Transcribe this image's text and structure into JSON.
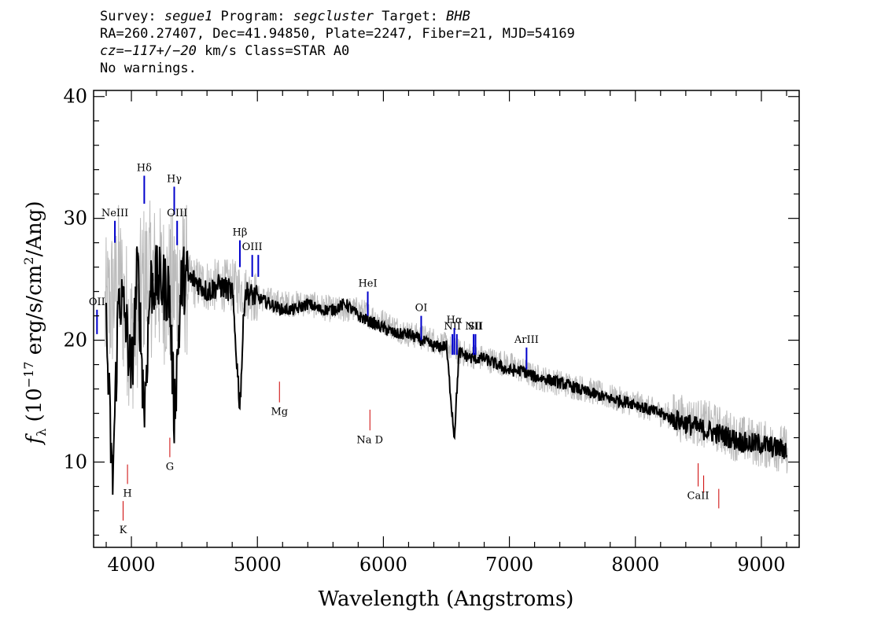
{
  "header": {
    "line1": {
      "survey_label": "Survey: ",
      "survey": "segue1",
      "program_label": " Program: ",
      "program": "segcluster",
      "target_label": " Target: ",
      "target": "BHB"
    },
    "line2": "RA=260.27407, Dec=41.94850, Plate=2247, Fiber=21, MJD=54169",
    "line3": {
      "cz": "cz=−117+/−20",
      "rest": " km/s Class=STAR A0"
    },
    "line4": "No warnings."
  },
  "chart_data": {
    "type": "line",
    "xlabel": "Wavelength (Angstroms)",
    "ylabel": "fλ (10⁻¹⁷ erg/s/cm²/Ang)",
    "xlim": [
      3700,
      9300
    ],
    "ylim": [
      3,
      40.5
    ],
    "xticks": [
      "4000",
      "5000",
      "6000",
      "7000",
      "8000",
      "9000"
    ],
    "yticks": [
      "10",
      "20",
      "30",
      "40"
    ],
    "series": [
      {
        "color": "#000000",
        "x": [
          3800,
          3850,
          3900,
          3950,
          4000,
          4050,
          4102,
          4150,
          4200,
          4250,
          4300,
          4340,
          4400,
          4500,
          4600,
          4700,
          4800,
          4861,
          4900,
          5000,
          5100,
          5200,
          5300,
          5400,
          5500,
          5600,
          5700,
          5800,
          5900,
          6000,
          6100,
          6200,
          6300,
          6400,
          6500,
          6563,
          6600,
          6700,
          6800,
          6900,
          7000,
          7100,
          7200,
          7300,
          7400,
          7500,
          7600,
          7700,
          7800,
          7900,
          8000,
          8100,
          8200,
          8300,
          8400,
          8500,
          8600,
          8700,
          8800,
          8900,
          9000,
          9100,
          9200
        ],
        "y": [
          21.0,
          8.0,
          24.0,
          22.0,
          17.0,
          26.0,
          14.0,
          24.5,
          25.0,
          24.5,
          24.0,
          14.0,
          25.0,
          25.0,
          24.0,
          24.5,
          24.0,
          14.5,
          24.0,
          23.5,
          23.0,
          22.5,
          22.5,
          23.0,
          22.5,
          22.5,
          23.0,
          22.0,
          21.5,
          21.0,
          20.5,
          20.5,
          20.0,
          19.5,
          19.5,
          12.0,
          19.0,
          18.5,
          18.5,
          18.0,
          17.5,
          17.5,
          17.0,
          16.8,
          16.5,
          16.2,
          15.8,
          15.5,
          15.2,
          15.0,
          14.8,
          14.3,
          14.0,
          13.5,
          13.2,
          12.8,
          12.5,
          12.2,
          11.8,
          11.5,
          11.5,
          11.2,
          11.0
        ]
      },
      {
        "color": "#bbbbbb",
        "x": [
          3800,
          3900,
          4000,
          4100,
          4200,
          4300,
          4400,
          4600,
          4800,
          5000,
          5200,
          5400,
          5600,
          5800,
          6000,
          6200,
          6400,
          6600,
          6800,
          7000,
          7200,
          7400,
          7600,
          7800,
          8000,
          8200,
          8400,
          8600,
          8800,
          9000,
          9200
        ],
        "y": [
          22.0,
          25.0,
          20.0,
          25.0,
          25.0,
          24.0,
          25.0,
          24.5,
          24.5,
          23.5,
          23.0,
          23.0,
          22.5,
          22.5,
          21.5,
          20.5,
          20.0,
          19.0,
          18.5,
          18.0,
          17.0,
          16.5,
          16.0,
          15.3,
          14.8,
          14.0,
          13.5,
          13.0,
          12.0,
          11.5,
          11.0
        ]
      }
    ],
    "emission_lines": [
      {
        "label": "NeIII",
        "x": 3869,
        "y_lo": 28.0,
        "y_hi": 29.8
      },
      {
        "label": "Hδ",
        "x": 4102,
        "y_lo": 31.2,
        "y_hi": 33.5
      },
      {
        "label": "Hγ",
        "x": 4340,
        "y_lo": 30.3,
        "y_hi": 32.6
      },
      {
        "label": "OIII",
        "x": 4363,
        "y_lo": 27.8,
        "y_hi": 29.8
      },
      {
        "label": "Hβ",
        "x": 4861,
        "y_lo": 26.0,
        "y_hi": 28.2
      },
      {
        "label": "OIII",
        "x": 4959,
        "y_lo": 25.2,
        "y_hi": 27.0
      },
      {
        "label": "",
        "x": 5007,
        "y_lo": 25.2,
        "y_hi": 27.0
      },
      {
        "label": "HeI",
        "x": 5876,
        "y_lo": 22.0,
        "y_hi": 24.0
      },
      {
        "label": "OI",
        "x": 6300,
        "y_lo": 20.0,
        "y_hi": 22.0
      },
      {
        "label": "NII",
        "x": 6548,
        "y_lo": 18.8,
        "y_hi": 20.5
      },
      {
        "label": "Hα",
        "x": 6563,
        "y_lo": 18.8,
        "y_hi": 21.0
      },
      {
        "label": "",
        "x": 6583,
        "y_lo": 18.8,
        "y_hi": 20.5
      },
      {
        "label": "NII",
        "x": 6716,
        "y_lo": 18.8,
        "y_hi": 20.5
      },
      {
        "label": "SII",
        "x": 6731,
        "y_lo": 18.8,
        "y_hi": 20.5
      },
      {
        "label": "ArIII",
        "x": 7136,
        "y_lo": 17.6,
        "y_hi": 19.4
      },
      {
        "label": "OII",
        "x": 3727,
        "y_lo": 20.5,
        "y_hi": 22.5
      }
    ],
    "absorption_lines": [
      {
        "label": "K",
        "x": 3934,
        "y_lo": 5.2,
        "y_hi": 6.8
      },
      {
        "label": "H",
        "x": 3969,
        "y_lo": 8.2,
        "y_hi": 9.8
      },
      {
        "label": "G",
        "x": 4305,
        "y_lo": 10.4,
        "y_hi": 12.0
      },
      {
        "label": "Mg",
        "x": 5175,
        "y_lo": 14.9,
        "y_hi": 16.6
      },
      {
        "label": "Na  D",
        "x": 5893,
        "y_lo": 12.6,
        "y_hi": 14.3
      },
      {
        "label": "CaII",
        "x": 8498,
        "y_lo": 8.0,
        "y_hi": 9.9
      },
      {
        "label": "",
        "x": 8542,
        "y_lo": 7.5,
        "y_hi": 8.9
      },
      {
        "label": "",
        "x": 8662,
        "y_lo": 6.2,
        "y_hi": 7.8
      }
    ],
    "colors": {
      "emission": "#0000cc",
      "absorption": "#cc0000",
      "noise": "#bbbbbb",
      "spectrum": "#000000"
    }
  }
}
